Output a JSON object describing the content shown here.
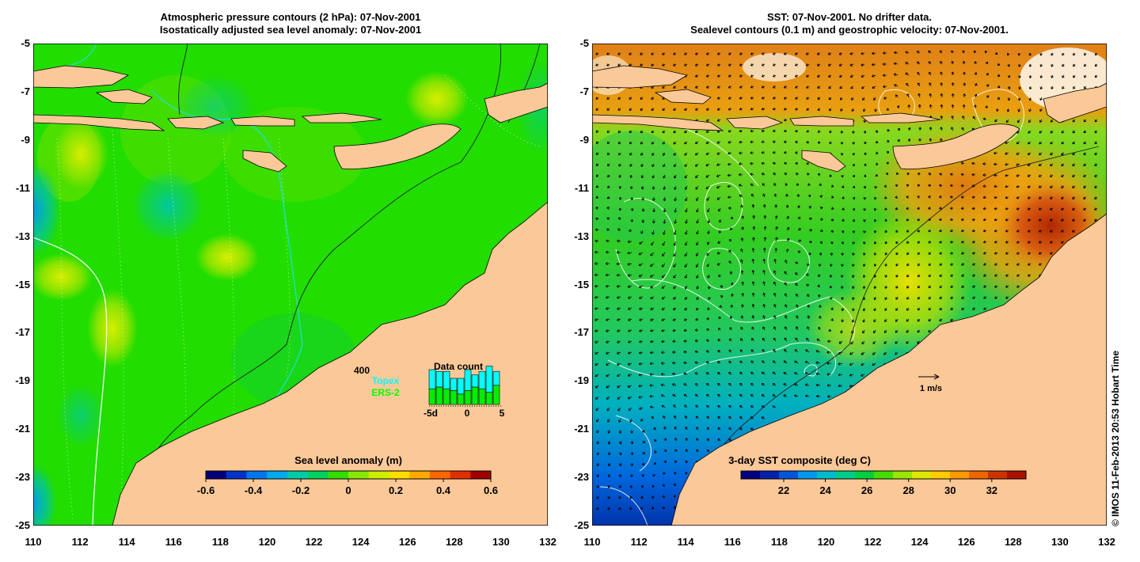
{
  "left_panel": {
    "title_line1": "Atmospheric pressure contours (2 hPa): 07-Nov-2001",
    "title_line2": "Isostatically adjusted sea level anomaly: 07-Nov-2001",
    "colorbar": {
      "label": "Sea level anomaly (m)",
      "ticks": [
        "-0.6",
        "-0.4",
        "-0.2",
        "0",
        "0.2",
        "0.4",
        "0.6"
      ],
      "colors": [
        "#00007a",
        "#0033cc",
        "#0077ee",
        "#00aaee",
        "#00ccaa",
        "#00d060",
        "#33dd00",
        "#88e800",
        "#ccee00",
        "#ffdd00",
        "#ffaa00",
        "#ff6600",
        "#e03000",
        "#a00000"
      ]
    },
    "data_count": {
      "title": "Data count",
      "scale_value": "400",
      "series_topex": "Topex",
      "series_ers2": "ERS-2",
      "x_start": "-5d",
      "x_mid": "0",
      "x_end": "5",
      "topex": [
        0.55,
        0.45,
        0.5,
        0.35,
        0.45,
        0.6,
        0.35,
        0.5,
        0.75,
        0.4
      ],
      "ers2": [
        0.45,
        0.5,
        0.45,
        0.4,
        0.3,
        0.4,
        0.5,
        0.45,
        0.35,
        0.55
      ]
    }
  },
  "right_panel": {
    "title_line1": "SST: 07-Nov-2001. No drifter data.",
    "title_line2": "Sealevel contours (0.1 m) and geostrophic velocity: 07-Nov-2001.",
    "colorbar": {
      "label": "3-day SST composite (deg C)",
      "ticks": [
        "22",
        "24",
        "26",
        "28",
        "30",
        "32"
      ],
      "colors": [
        "#000080",
        "#0022aa",
        "#0055dd",
        "#0099ee",
        "#00bbcc",
        "#00cc88",
        "#00d040",
        "#44dd00",
        "#99e600",
        "#dde800",
        "#ffcc00",
        "#ff9900",
        "#ee6600",
        "#cc3300",
        "#aa1100"
      ]
    },
    "velocity_scale_label": "1 m/s"
  },
  "axes": {
    "lon_ticks": [
      "110",
      "112",
      "114",
      "116",
      "118",
      "120",
      "122",
      "124",
      "126",
      "128",
      "130",
      "132"
    ],
    "lat_ticks": [
      "-5",
      "-7",
      "-9",
      "-11",
      "-13",
      "-15",
      "-17",
      "-19",
      "-21",
      "-23",
      "-25"
    ]
  },
  "credit": "© IMOS 11-Feb-2013 20:53 Hobart Time",
  "colors": {
    "land": "#fbc898",
    "sla_ocean": "#22dd00",
    "sst_ocean_mid": "#44cc22"
  }
}
